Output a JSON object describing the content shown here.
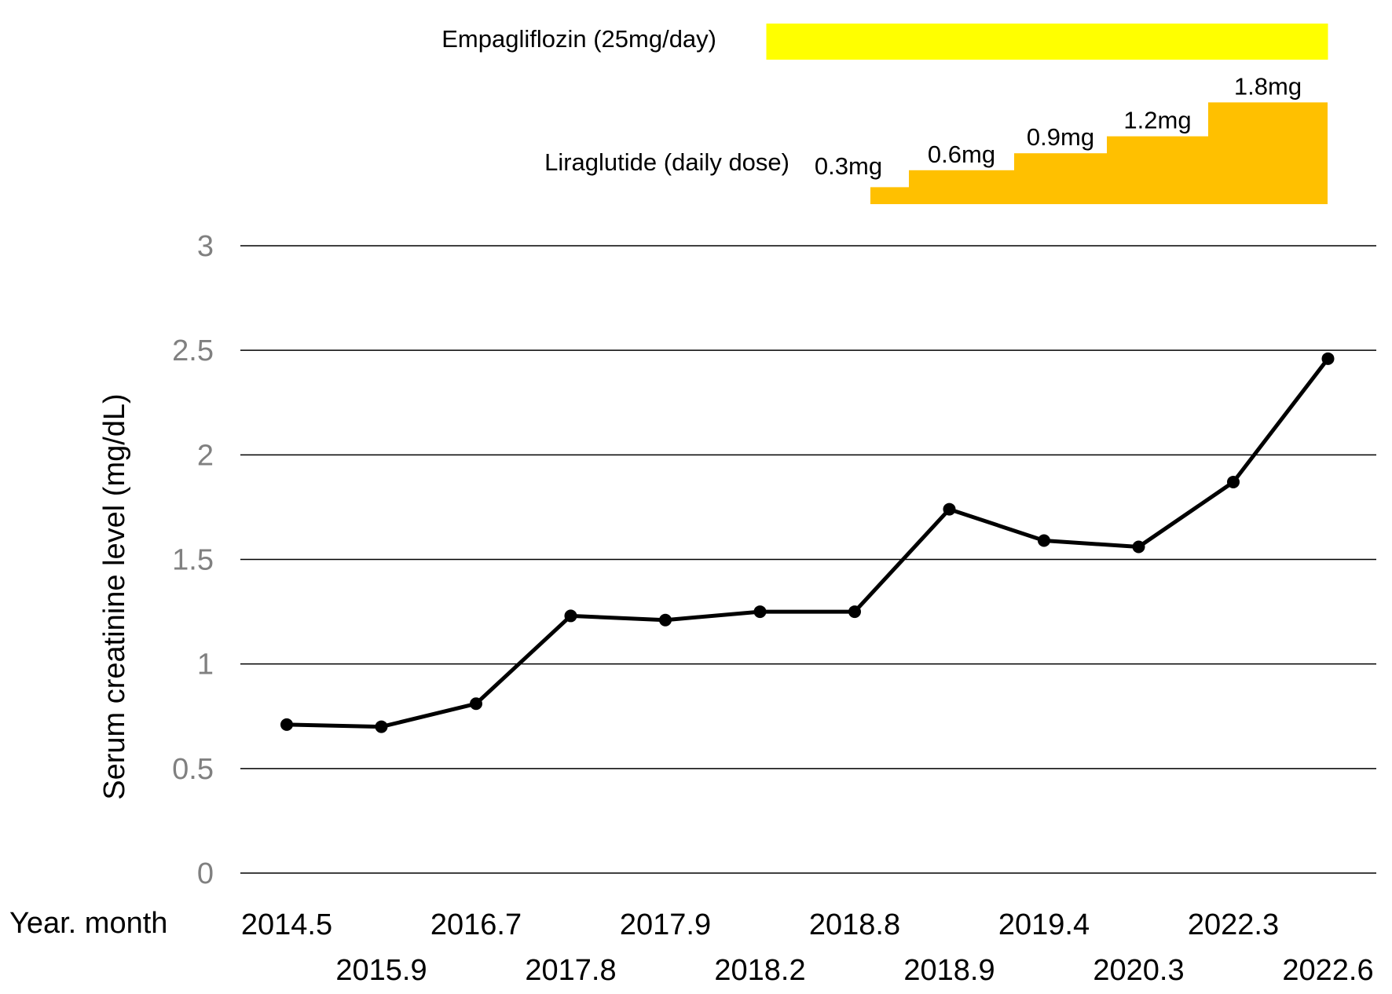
{
  "chart_data": {
    "type": "line",
    "ylabel": "Serum creatinine level (mg/dL)",
    "xlabel": "Year. month",
    "ylim": [
      0,
      3
    ],
    "yticks": [
      0,
      0.5,
      1,
      1.5,
      2,
      2.5,
      3
    ],
    "grid": true,
    "categories": [
      "2014.5",
      "2015.9",
      "2016.7",
      "2017.8",
      "2017.9",
      "2018.2",
      "2018.8",
      "2018.9",
      "2019.4",
      "2020.3",
      "2022.3",
      "2022.6"
    ],
    "series": [
      {
        "values": [
          0.71,
          0.7,
          0.81,
          1.23,
          1.21,
          1.25,
          1.25,
          1.74,
          1.59,
          1.56,
          1.87,
          2.46
        ]
      }
    ],
    "line_color": "#000000",
    "annotations": {
      "empagliflozin": {
        "label": "Empagliflozin (25mg/day)",
        "start": "2018.2",
        "end": "2022.6",
        "color": "#FFFF00"
      },
      "liraglutide": {
        "label": "Liraglutide (daily dose)",
        "color": "#FFC000",
        "steps": [
          {
            "dose": 0.3,
            "label": "0.3mg"
          },
          {
            "dose": 0.6,
            "label": "0.6mg"
          },
          {
            "dose": 0.9,
            "label": "0.9mg"
          },
          {
            "dose": 1.2,
            "label": "1.2mg"
          },
          {
            "dose": 1.8,
            "label": "1.8mg"
          }
        ]
      }
    }
  }
}
